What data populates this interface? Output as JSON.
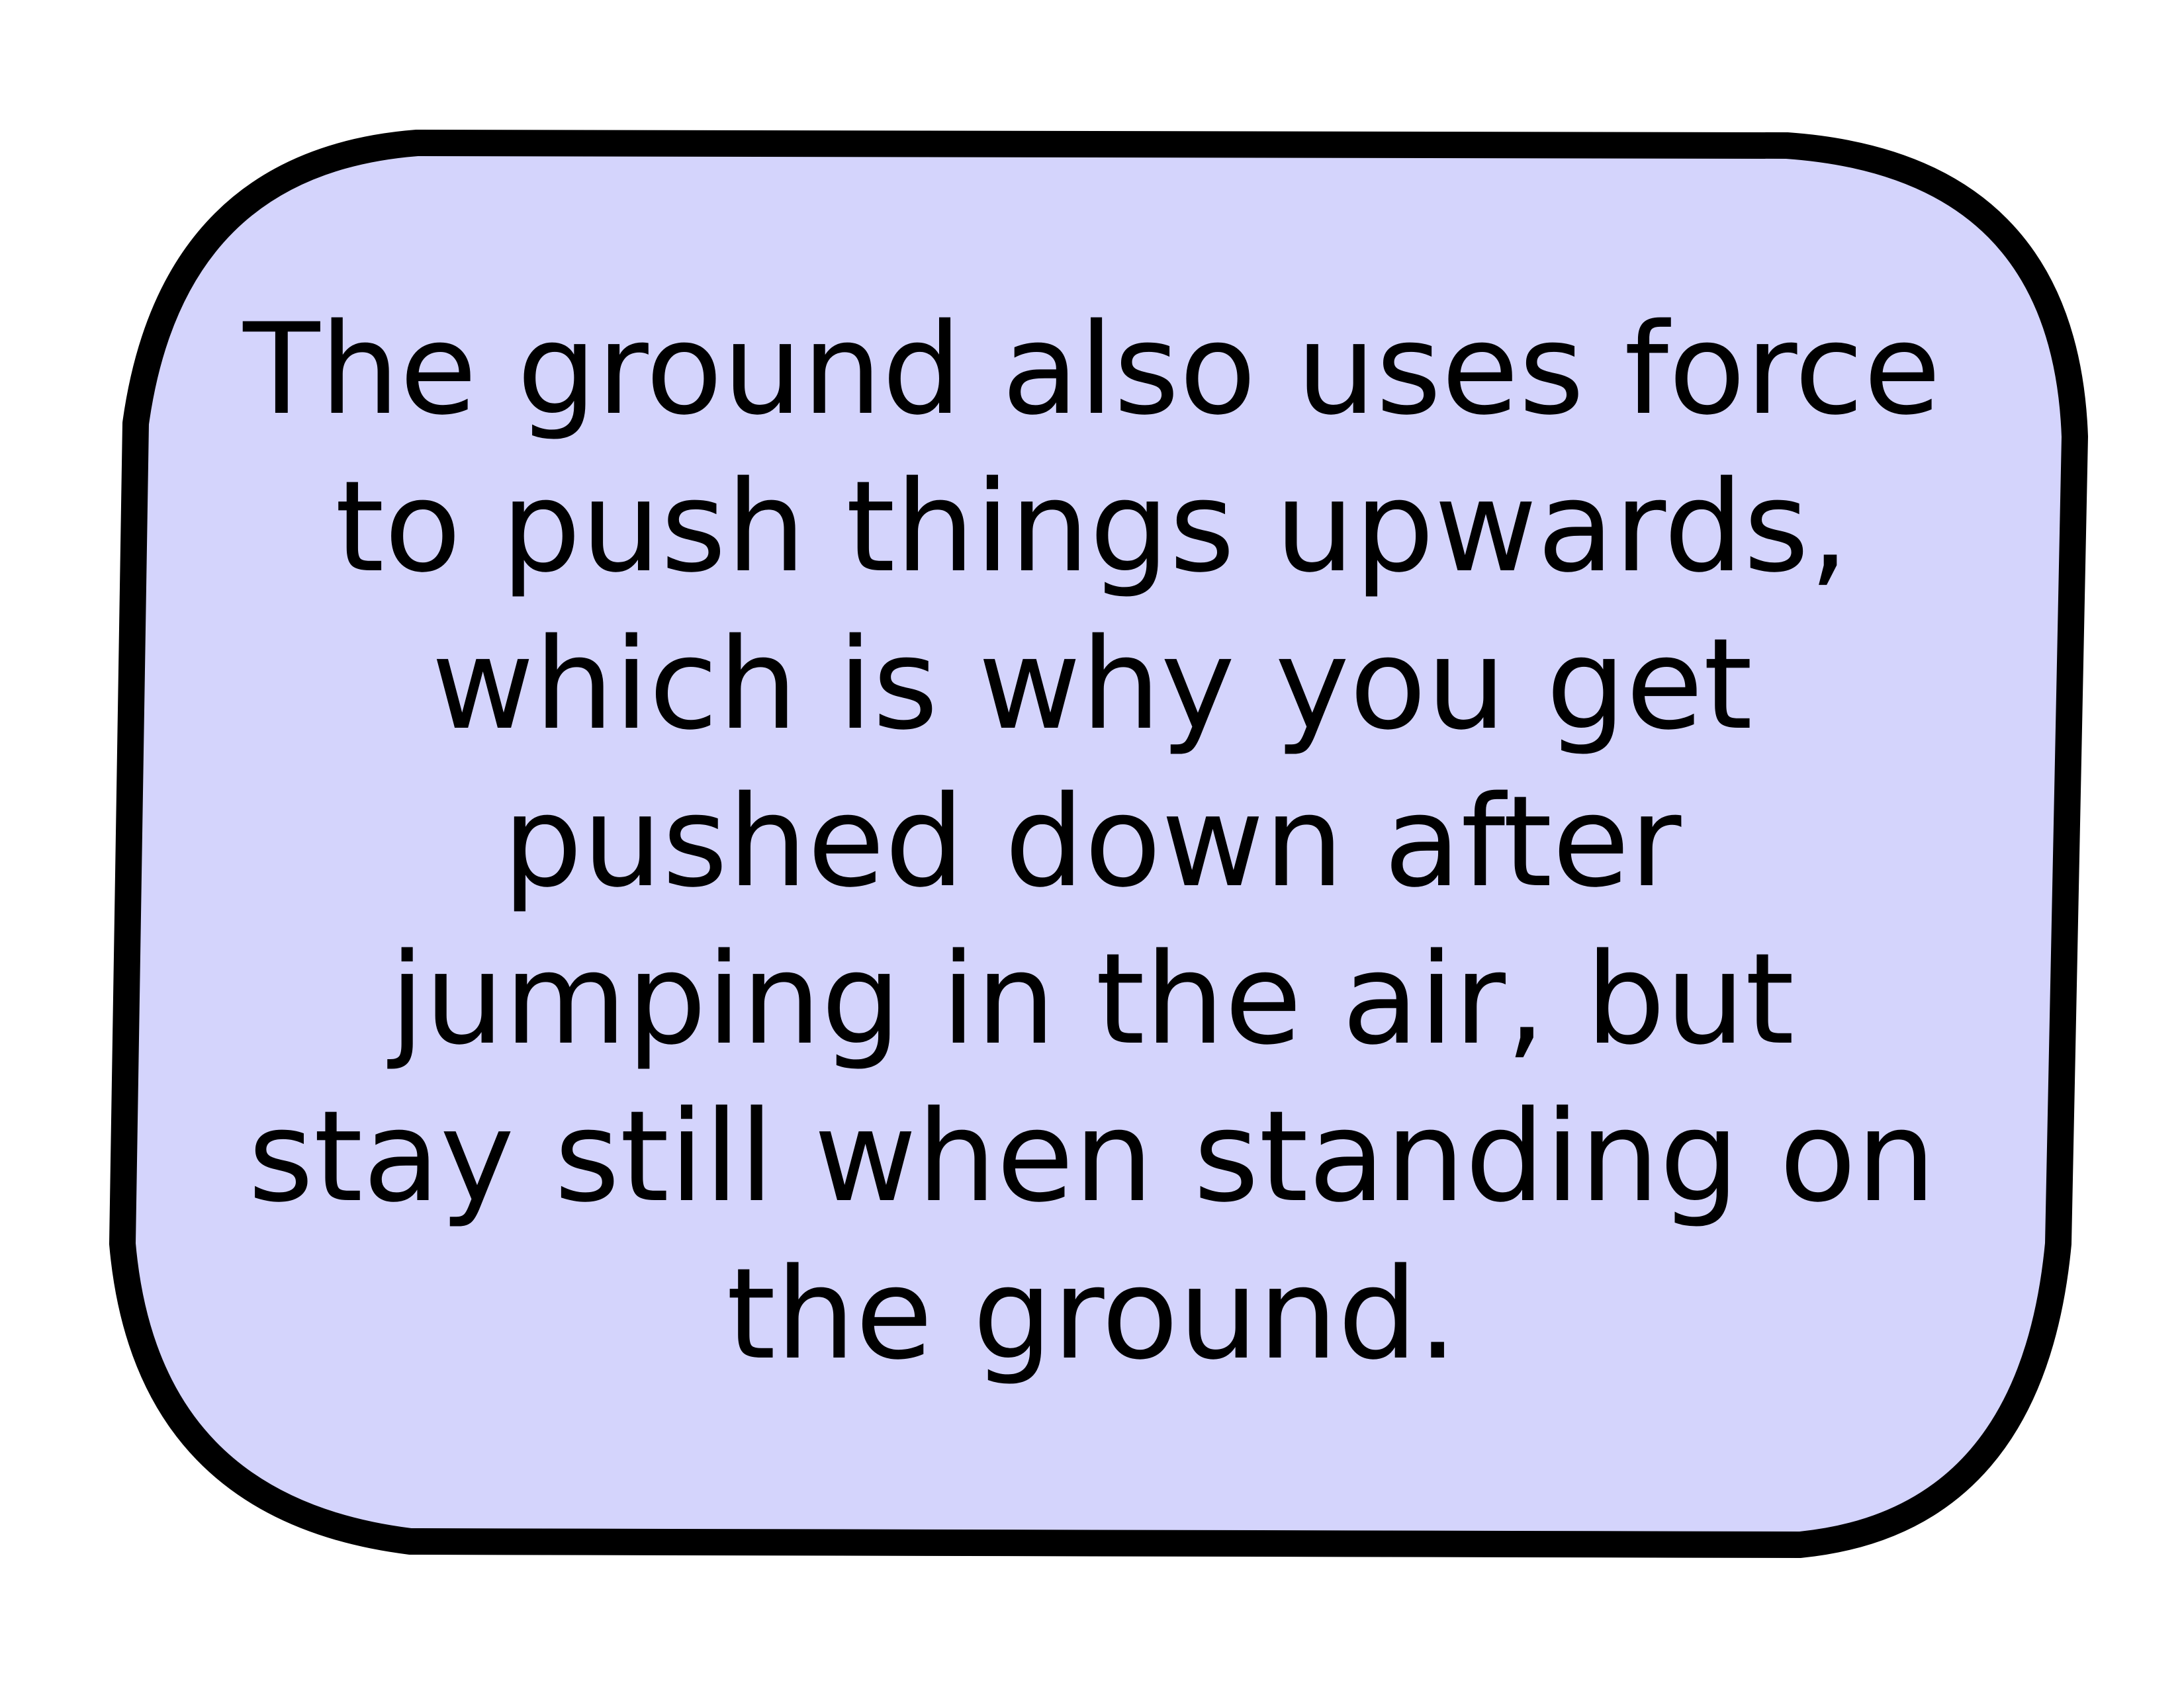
{
  "card": {
    "fill_color": "#d4d4fc",
    "border_color": "#000000",
    "lines": [
      "The ground also uses force",
      "to push things upwards,",
      "which is why you get",
      "pushed down after",
      "jumping in the air, but",
      "stay still when standing on",
      "the ground."
    ]
  }
}
